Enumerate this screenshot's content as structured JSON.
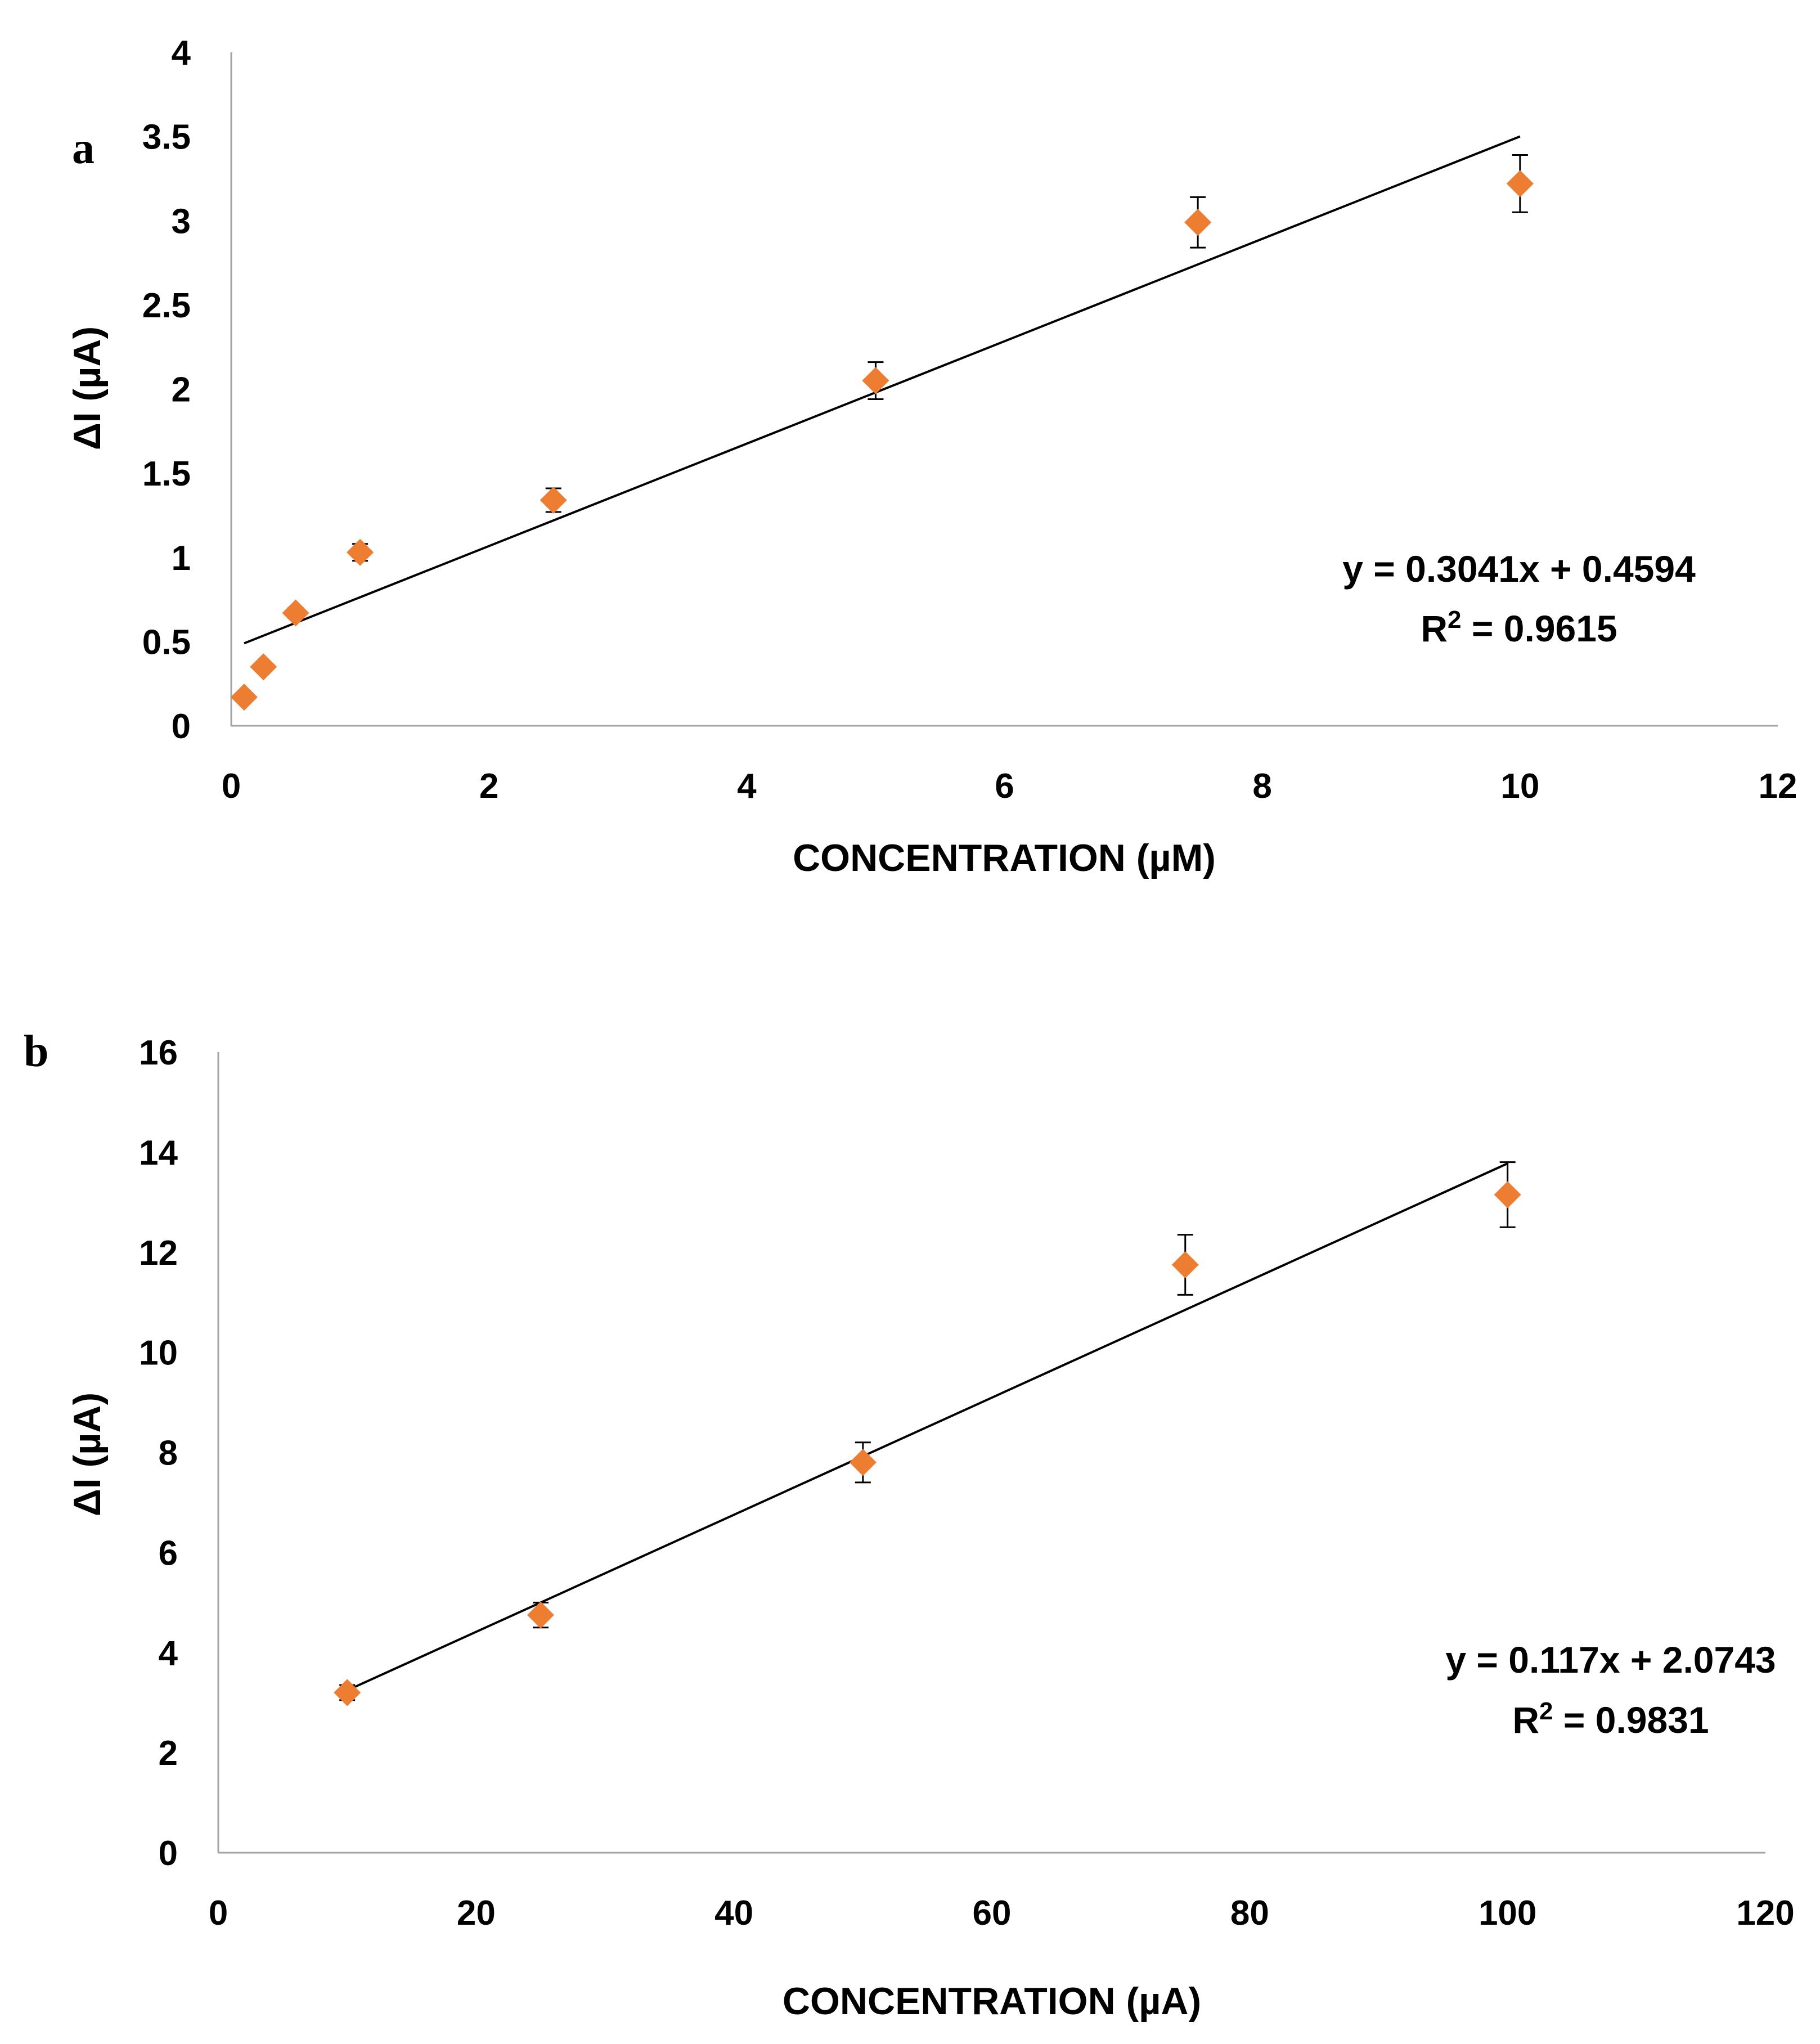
{
  "chart_data": [
    {
      "panel": "a",
      "type": "scatter",
      "xlabel": "CONCENTRATION (µM)",
      "ylabel": "ΔI (µA)",
      "xlim": [
        0,
        12
      ],
      "ylim": [
        0,
        4
      ],
      "xticks": [
        0,
        2,
        4,
        6,
        8,
        10,
        12
      ],
      "xtick_labels": [
        "0",
        "2",
        "4",
        "6",
        "8",
        "10",
        "12"
      ],
      "yticks": [
        0,
        0.5,
        1,
        1.5,
        2,
        2.5,
        3,
        3.5,
        4
      ],
      "ytick_labels": [
        "0",
        "0.5",
        "1",
        "1.5",
        "2",
        "2.5",
        "3",
        "3.5",
        "4"
      ],
      "marker_color": "#ED7D31",
      "points": [
        {
          "x": 0.1,
          "y": 0.17,
          "err": 0
        },
        {
          "x": 0.25,
          "y": 0.35,
          "err": 0
        },
        {
          "x": 0.5,
          "y": 0.67,
          "err": 0.03
        },
        {
          "x": 1,
          "y": 1.03,
          "err": 0.05
        },
        {
          "x": 2.5,
          "y": 1.34,
          "err": 0.07
        },
        {
          "x": 5,
          "y": 2.05,
          "err": 0.11
        },
        {
          "x": 7.5,
          "y": 2.99,
          "err": 0.15
        },
        {
          "x": 10,
          "y": 3.22,
          "err": 0.17
        }
      ],
      "trendline": {
        "slope": 0.3041,
        "intercept": 0.4594,
        "x_start": 0.1,
        "x_end": 10
      },
      "equation": "y = 0.3041x + 0.4594",
      "r2_prefix": "R",
      "r2_sup": "2",
      "r2_value": " = 0.9615"
    },
    {
      "panel": "b",
      "type": "scatter",
      "xlabel": "CONCENTRATION (µA)",
      "ylabel": "ΔI (µA)",
      "xlim": [
        0,
        120
      ],
      "ylim": [
        0,
        16
      ],
      "xticks": [
        0,
        20,
        40,
        60,
        80,
        100,
        120
      ],
      "xtick_labels": [
        "0",
        "20",
        "40",
        "60",
        "80",
        "100",
        "120"
      ],
      "yticks": [
        0,
        2,
        4,
        6,
        8,
        10,
        12,
        14,
        16
      ],
      "ytick_labels": [
        "0",
        "2",
        "4",
        "6",
        "8",
        "10",
        "12",
        "14",
        "16"
      ],
      "marker_color": "#ED7D31",
      "points": [
        {
          "x": 10,
          "y": 3.2,
          "err": 0.15
        },
        {
          "x": 25,
          "y": 4.75,
          "err": 0.25
        },
        {
          "x": 50,
          "y": 7.8,
          "err": 0.4
        },
        {
          "x": 75,
          "y": 11.75,
          "err": 0.6
        },
        {
          "x": 100,
          "y": 13.15,
          "err": 0.65
        }
      ],
      "trendline": {
        "slope": 0.117,
        "intercept": 2.0743,
        "x_start": 10,
        "x_end": 100
      },
      "equation": "y = 0.117x + 2.0743",
      "r2_prefix": "R",
      "r2_sup": "2",
      "r2_value": " = 0.9831"
    }
  ]
}
